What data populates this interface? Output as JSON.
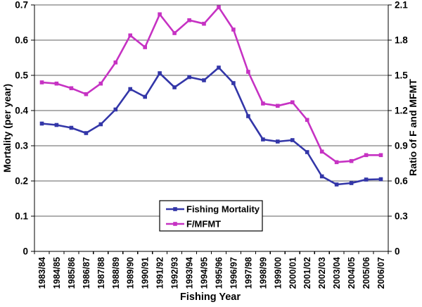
{
  "chart_data": {
    "type": "line",
    "title": "",
    "x": {
      "label": "Fishing Year",
      "categories": [
        "1983/84",
        "1984/85",
        "1985/86",
        "1986/87",
        "1987/88",
        "1988/89",
        "1989/90",
        "1990/91",
        "1991/92",
        "1992/93",
        "1993/94",
        "1994/95",
        "1995/96",
        "1996/97",
        "1997/98",
        "1998/99",
        "1999/00",
        "2000/01",
        "2001/02",
        "2002/03",
        "2003/04",
        "2004/05",
        "2005/06",
        "2006/07"
      ]
    },
    "y_left": {
      "label": "Mortality (per year)",
      "min": 0,
      "max": 0.7,
      "ticks": [
        "0",
        "0.1",
        "0.2",
        "0.3",
        "0.4",
        "0.5",
        "0.6",
        "0.7"
      ]
    },
    "y_right": {
      "label": "Ratio of F and MFMT",
      "min": 0,
      "max": 2.1,
      "ticks": [
        "0",
        "0.3",
        "0.6",
        "0.9",
        "1.2",
        "1.5",
        "1.8",
        "2.1"
      ]
    },
    "grid": {
      "horizontal": true,
      "color": "#5f5f5f"
    },
    "axis_color": "#000000",
    "legend": {
      "position": "inside-bottom-center",
      "background": "#ffffff",
      "border_color": "#000000"
    },
    "series": [
      {
        "name": "Fishing Mortality",
        "axis": "left",
        "color": "#3336a8",
        "marker": "square",
        "values": [
          0.363,
          0.359,
          0.351,
          0.336,
          0.361,
          0.403,
          0.461,
          0.439,
          0.506,
          0.466,
          0.495,
          0.486,
          0.522,
          0.478,
          0.384,
          0.318,
          0.312,
          0.316,
          0.282,
          0.213,
          0.19,
          0.194,
          0.204,
          0.205
        ]
      },
      {
        "name": "F/MFMT",
        "axis": "right",
        "color": "#c632c3",
        "marker": "square",
        "values": [
          1.44,
          1.43,
          1.39,
          1.34,
          1.43,
          1.61,
          1.84,
          1.74,
          2.02,
          1.86,
          1.97,
          1.94,
          2.08,
          1.89,
          1.53,
          1.26,
          1.24,
          1.27,
          1.12,
          0.85,
          0.76,
          0.77,
          0.82,
          0.82
        ]
      }
    ]
  }
}
